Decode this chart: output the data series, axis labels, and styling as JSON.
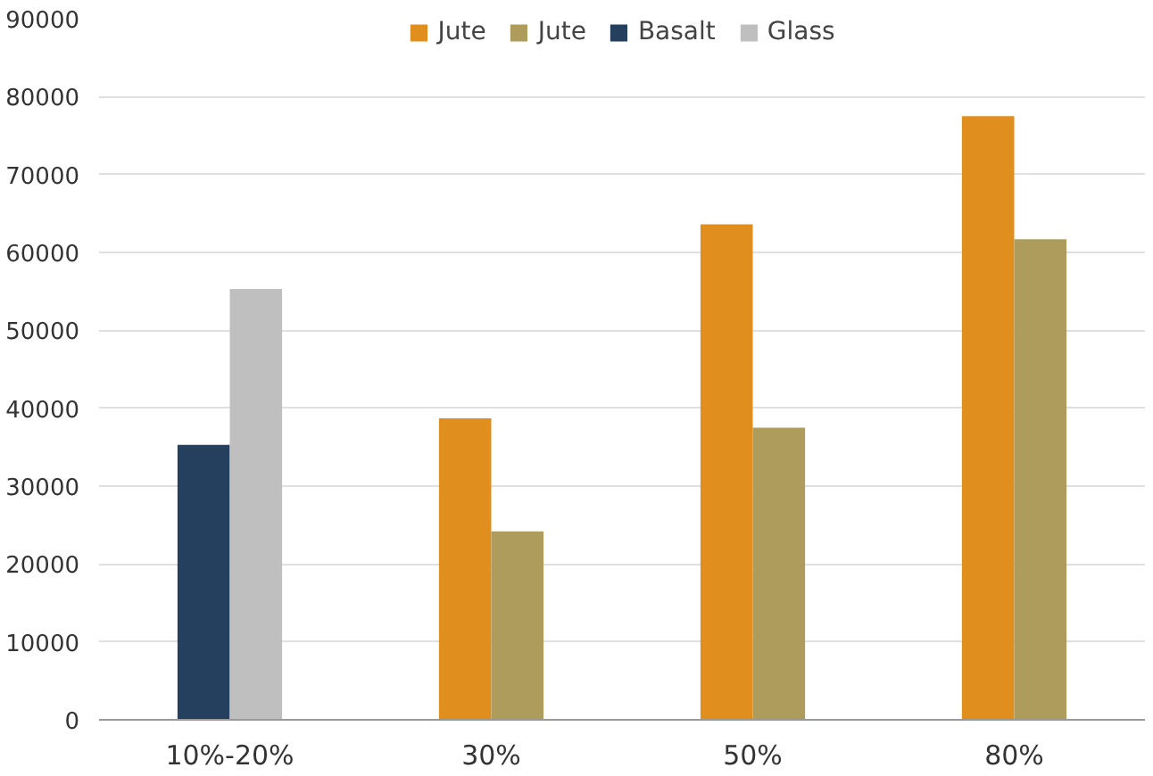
{
  "chart_data": {
    "type": "bar",
    "categories": [
      "10%-20%",
      "30%",
      "50%",
      "80%"
    ],
    "series": [
      {
        "name": "Jute",
        "color": "#e08e1e",
        "values": [
          null,
          38700,
          63600,
          77500
        ]
      },
      {
        "name": "Jute",
        "color": "#ad9c5c",
        "values": [
          null,
          24200,
          37500,
          61700
        ]
      },
      {
        "name": "Basalt",
        "color": "#253f5f",
        "values": [
          35300,
          null,
          null,
          null
        ]
      },
      {
        "name": "Glass",
        "color": "#bfbfbf",
        "values": [
          55300,
          null,
          null,
          null
        ]
      }
    ],
    "ylim": [
      0,
      90000
    ],
    "yticks": [
      0,
      10000,
      20000,
      30000,
      40000,
      50000,
      60000,
      70000,
      80000,
      90000
    ],
    "grid": "y",
    "legend": "top"
  }
}
